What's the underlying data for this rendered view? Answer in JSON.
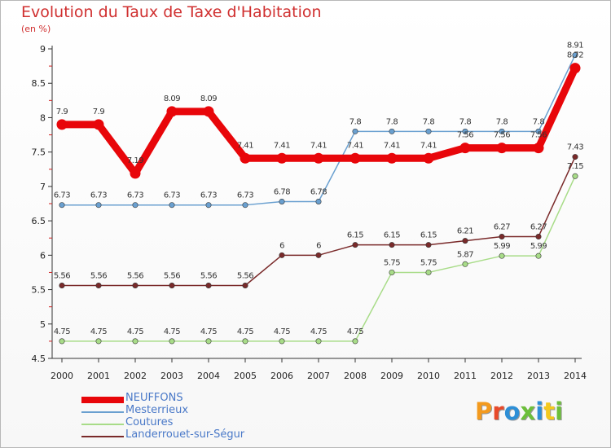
{
  "title": "Evolution du Taux de Taxe d'Habitation",
  "subtitle": "(en %)",
  "logo_text": "Proxiti",
  "chart_data": {
    "type": "line",
    "title": "Evolution du Taux de Taxe d'Habitation",
    "ylabel": "(en %)",
    "xlabel": "",
    "categories": [
      "2000",
      "2001",
      "2002",
      "2003",
      "2004",
      "2005",
      "2006",
      "2007",
      "2008",
      "2009",
      "2010",
      "2011",
      "2012",
      "2013",
      "2014"
    ],
    "ylim": [
      4.5,
      9
    ],
    "yticks": [
      "4.5",
      "5",
      "5.5",
      "6",
      "6.5",
      "7",
      "7.5",
      "8",
      "8.5",
      "9"
    ],
    "grid": false,
    "legend_position": "bottom-left",
    "series": [
      {
        "name": "NEUFFONS",
        "color": "#e8060a",
        "values": [
          7.9,
          7.9,
          7.19,
          8.09,
          8.09,
          7.41,
          7.41,
          7.41,
          7.41,
          7.41,
          7.41,
          7.56,
          7.56,
          7.56,
          8.72
        ],
        "labels": [
          "7.9",
          "7.9",
          "7.19",
          "8.09",
          "8.09",
          "7.41",
          "7.41",
          "7.41",
          "7.41",
          "7.41",
          "7.41",
          "7.56",
          "7.56",
          "7.56",
          "8.72"
        ]
      },
      {
        "name": "Mesterrieux",
        "color": "#6aa0d0",
        "values": [
          6.73,
          6.73,
          6.73,
          6.73,
          6.73,
          6.73,
          6.78,
          6.78,
          7.8,
          7.8,
          7.8,
          7.8,
          7.8,
          7.8,
          8.91
        ],
        "labels": [
          "6.73",
          "6.73",
          "6.73",
          "6.73",
          "6.73",
          "6.73",
          "6.78",
          "6.78",
          "7.8",
          "7.8",
          "7.8",
          "7.8",
          "7.8",
          "7.8",
          "8.91"
        ]
      },
      {
        "name": "Coutures",
        "color": "#a8dc88",
        "values": [
          4.75,
          4.75,
          4.75,
          4.75,
          4.75,
          4.75,
          4.75,
          4.75,
          4.75,
          5.75,
          5.75,
          5.87,
          5.99,
          5.99,
          7.15
        ],
        "labels": [
          "4.75",
          "4.75",
          "4.75",
          "4.75",
          "4.75",
          "4.75",
          "4.75",
          "4.75",
          "4.75",
          "5.75",
          "5.75",
          "5.87",
          "5.99",
          "5.99",
          "7.15"
        ]
      },
      {
        "name": "Landerrouet-sur-Ségur",
        "color": "#7a2a2a",
        "values": [
          5.56,
          5.56,
          5.56,
          5.56,
          5.56,
          5.56,
          6,
          6,
          6.15,
          6.15,
          6.15,
          6.21,
          6.27,
          6.27,
          7.43
        ],
        "labels": [
          "5.56",
          "5.56",
          "5.56",
          "5.56",
          "5.56",
          "5.56",
          "6",
          "6",
          "6.15",
          "6.15",
          "6.15",
          "6.21",
          "6.27",
          "6.27",
          "7.43"
        ]
      }
    ]
  }
}
